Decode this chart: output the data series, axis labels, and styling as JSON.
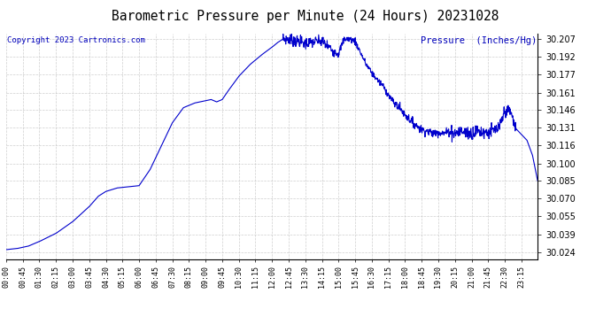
{
  "title": "Barometric Pressure per Minute (24 Hours) 20231028",
  "copyright": "Copyright 2023 Cartronics.com",
  "ylabel": "Pressure  (Inches/Hg)",
  "line_color": "#0000cc",
  "bg_color": "#ffffff",
  "grid_color": "#bbbbbb",
  "yticks": [
    30.024,
    30.039,
    30.055,
    30.07,
    30.085,
    30.1,
    30.116,
    30.131,
    30.146,
    30.161,
    30.177,
    30.192,
    30.207
  ],
  "xtick_labels": [
    "00:00",
    "00:45",
    "01:30",
    "02:15",
    "03:00",
    "03:45",
    "04:30",
    "05:15",
    "06:00",
    "06:45",
    "07:30",
    "08:15",
    "09:00",
    "09:45",
    "10:30",
    "11:15",
    "12:00",
    "12:45",
    "13:30",
    "14:15",
    "15:00",
    "15:45",
    "16:30",
    "17:15",
    "18:00",
    "18:45",
    "19:30",
    "20:15",
    "21:00",
    "21:45",
    "22:30",
    "23:15"
  ],
  "ylim": [
    30.018,
    30.212
  ],
  "xlim": [
    0,
    1439
  ],
  "keypoints_t": [
    0,
    30,
    60,
    90,
    135,
    180,
    225,
    250,
    270,
    300,
    330,
    360,
    390,
    420,
    450,
    480,
    510,
    540,
    555,
    570,
    585,
    600,
    630,
    660,
    690,
    720,
    735,
    750,
    765,
    795,
    810,
    840,
    855,
    870,
    885,
    900,
    915,
    930,
    945,
    960,
    975,
    990,
    1005,
    1020,
    1035,
    1050,
    1065,
    1080,
    1095,
    1110,
    1125,
    1140,
    1155,
    1170,
    1185,
    1200,
    1215,
    1230,
    1245,
    1260,
    1275,
    1290,
    1305,
    1320,
    1335,
    1350,
    1365,
    1380,
    1395,
    1410,
    1425,
    1439
  ],
  "keypoints_v": [
    30.026,
    30.027,
    30.029,
    30.033,
    30.04,
    30.05,
    30.063,
    30.072,
    30.076,
    30.079,
    30.08,
    30.081,
    30.095,
    30.115,
    30.135,
    30.148,
    30.152,
    30.154,
    30.155,
    30.153,
    30.155,
    30.162,
    30.175,
    30.185,
    30.193,
    30.2,
    30.204,
    30.207,
    30.207,
    30.205,
    30.203,
    30.205,
    30.205,
    30.201,
    30.197,
    30.195,
    30.207,
    30.207,
    30.205,
    30.195,
    30.185,
    30.178,
    30.172,
    30.167,
    30.159,
    30.152,
    30.148,
    30.142,
    30.137,
    30.133,
    30.129,
    30.128,
    30.126,
    30.127,
    30.126,
    30.128,
    30.126,
    30.128,
    30.127,
    30.126,
    30.128,
    30.127,
    30.127,
    30.128,
    30.13,
    30.145,
    30.145,
    30.13,
    30.125,
    30.12,
    30.107,
    30.085
  ]
}
